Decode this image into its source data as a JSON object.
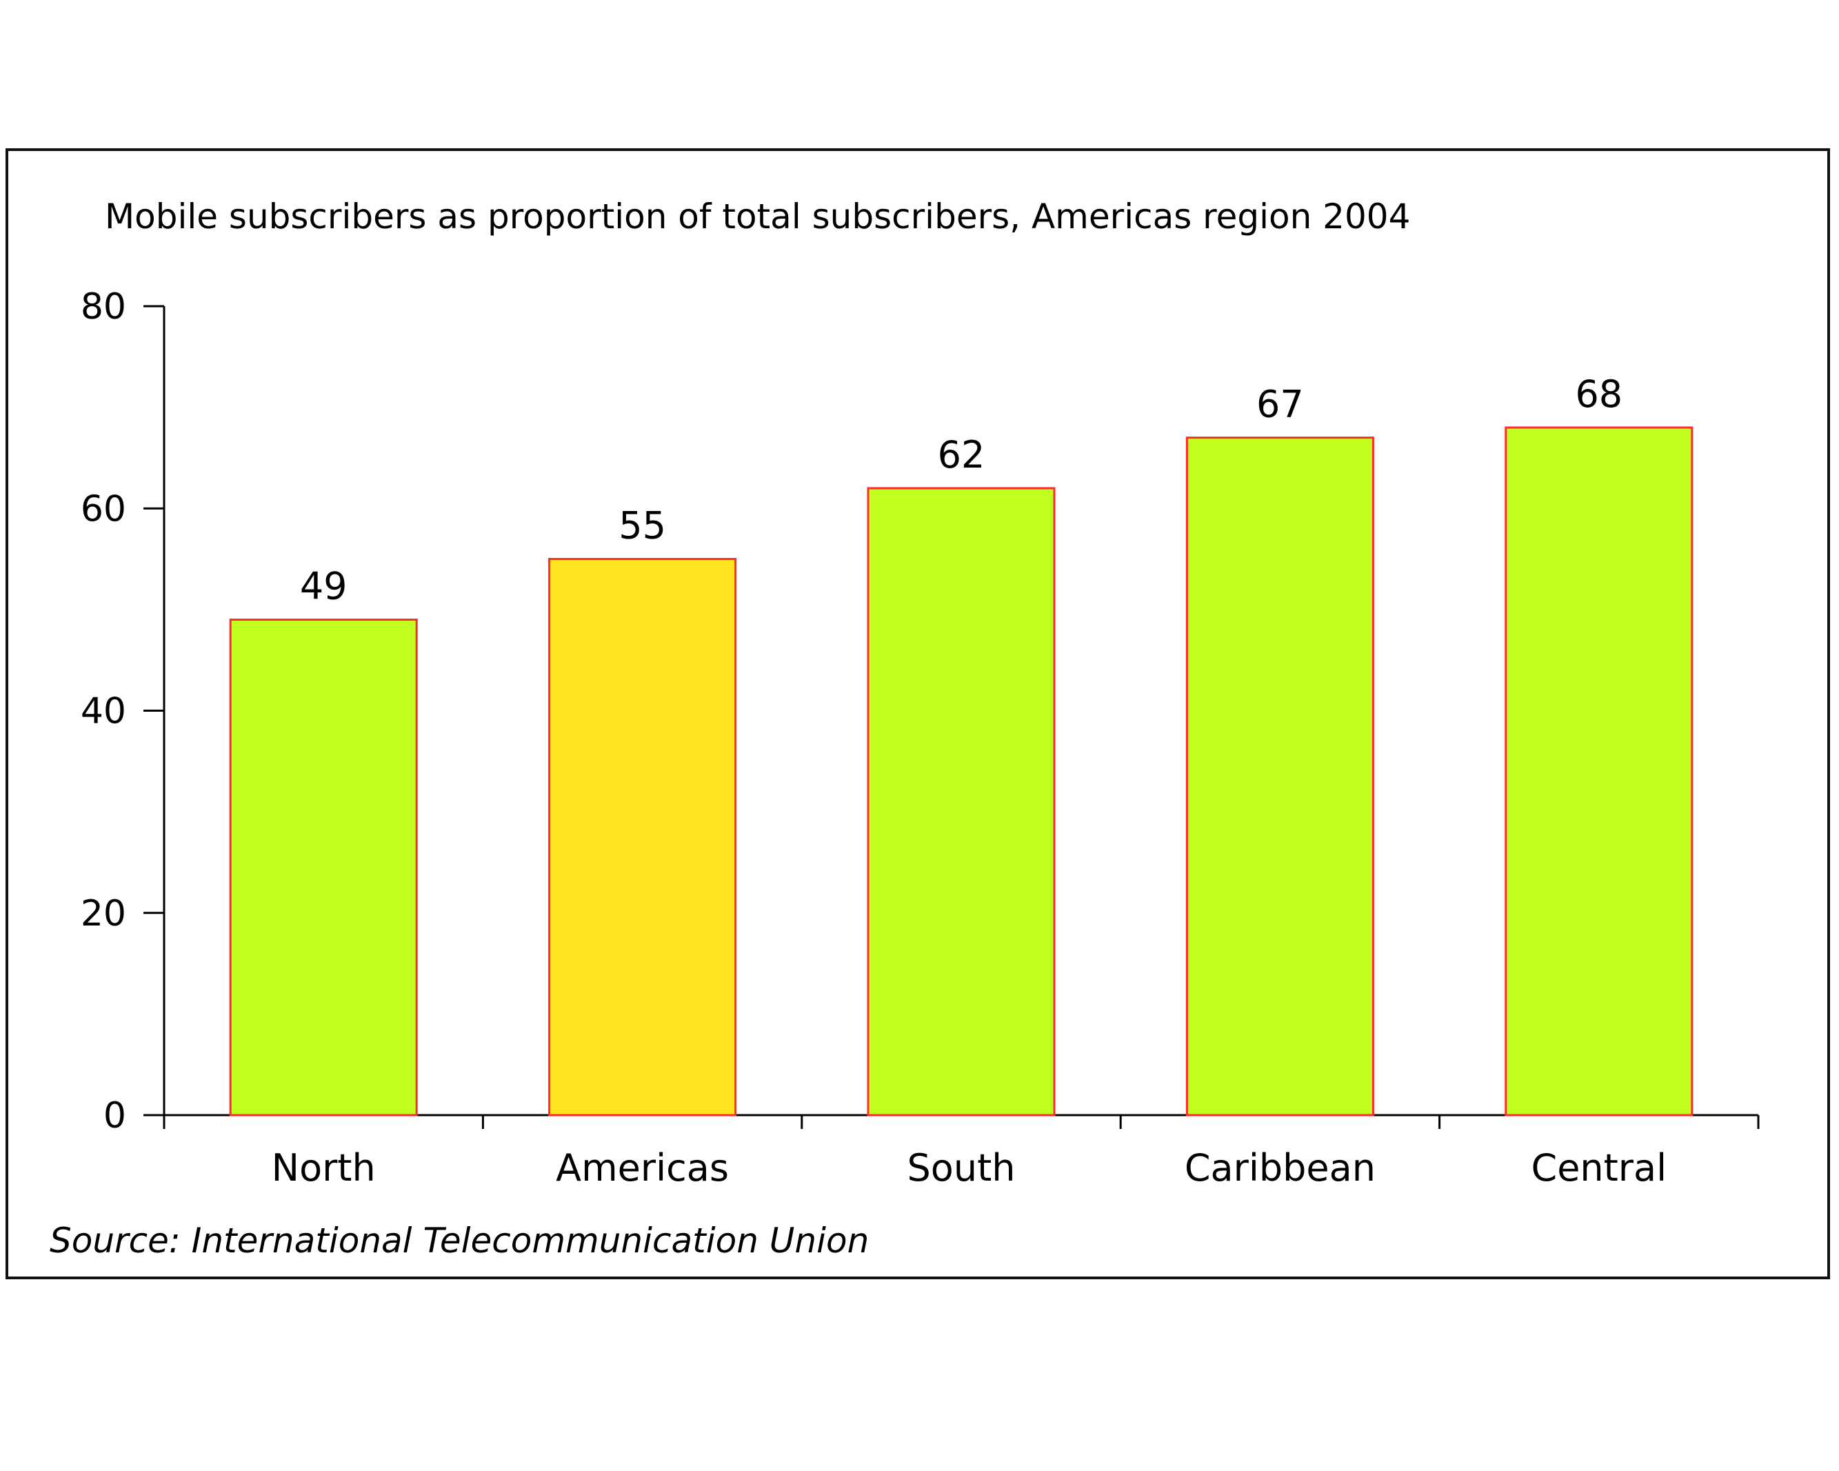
{
  "chart_data": {
    "type": "bar",
    "title": "Mobile subscribers as proportion of total subscribers, Americas region 2004",
    "xlabel": "",
    "ylabel": "",
    "categories": [
      "North",
      "Americas",
      "South",
      "Caribbean",
      "Central"
    ],
    "values": [
      49,
      55,
      62,
      67,
      68
    ],
    "value_labels": [
      "49",
      "55",
      "62",
      "67",
      "68"
    ],
    "bar_colors": [
      "#c0ff1e",
      "#ffe31e",
      "#c0ff1e",
      "#c0ff1e",
      "#c0ff1e"
    ],
    "bar_outline_color": "#ff2a2a",
    "ylim": [
      0,
      80
    ],
    "yticks": [
      0,
      20,
      40,
      60,
      80
    ],
    "ytick_labels": [
      "0",
      "20",
      "40",
      "60",
      "80"
    ],
    "grid": false,
    "legend": "none",
    "source": "Source: International Telecommunication Union"
  }
}
